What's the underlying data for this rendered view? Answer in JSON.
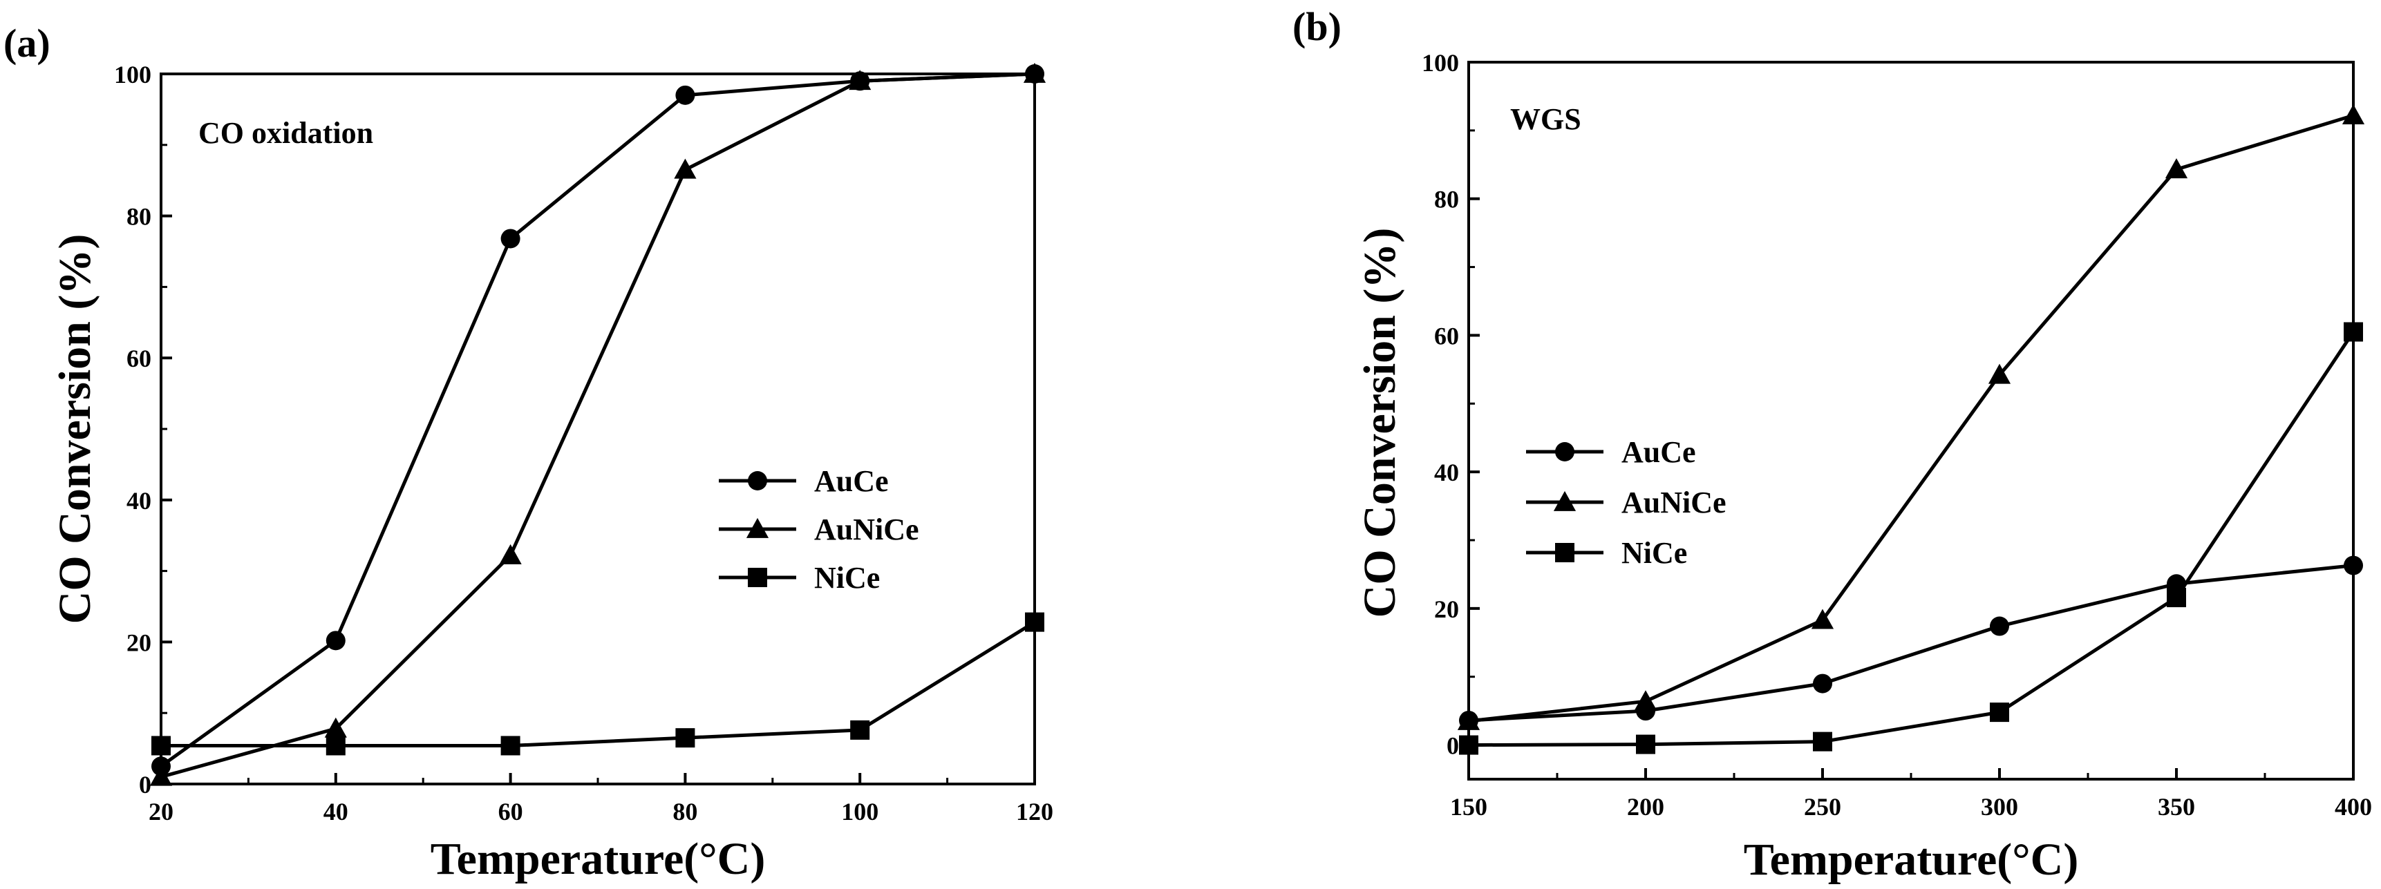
{
  "chart_data": [
    {
      "panel_label": "(a)",
      "type": "line",
      "title": "",
      "annotation": "CO oxidation",
      "xlabel": "Temperature(°C)",
      "ylabel": "CO Conversion (%)",
      "xlim": [
        20,
        120
      ],
      "ylim": [
        0,
        100
      ],
      "xticks": [
        20,
        40,
        60,
        80,
        100,
        120
      ],
      "yticks": [
        0,
        20,
        40,
        60,
        80,
        100
      ],
      "legend_position": "center-right",
      "series": [
        {
          "name": "AuCe",
          "marker": "circle",
          "x": [
            20,
            40,
            60,
            80,
            100,
            120
          ],
          "values": [
            2.5,
            20.2,
            76.8,
            97,
            99,
            100
          ]
        },
        {
          "name": "AuNiCe",
          "marker": "triangle",
          "x": [
            20,
            40,
            60,
            80,
            100,
            120
          ],
          "values": [
            1,
            7.8,
            32.2,
            86.5,
            99,
            100
          ]
        },
        {
          "name": "NiCe",
          "marker": "square",
          "x": [
            20,
            40,
            60,
            80,
            100,
            120
          ],
          "values": [
            5.4,
            5.4,
            5.4,
            6.5,
            7.6,
            22.8
          ]
        }
      ]
    },
    {
      "panel_label": "(b)",
      "type": "line",
      "title": "",
      "annotation": "WGS",
      "xlabel": "Temperature(°C)",
      "ylabel": "CO Conversion (%)",
      "xlim": [
        150,
        400
      ],
      "ylim": [
        -5,
        100
      ],
      "xticks": [
        150,
        200,
        250,
        300,
        350,
        400
      ],
      "yticks": [
        0,
        20,
        40,
        60,
        80,
        100
      ],
      "legend_position": "center-left",
      "series": [
        {
          "name": "AuCe",
          "marker": "circle",
          "x": [
            150,
            200,
            250,
            300,
            350,
            400
          ],
          "values": [
            3.6,
            5,
            9,
            17.4,
            23.6,
            26.3
          ]
        },
        {
          "name": "AuNiCe",
          "marker": "triangle",
          "x": [
            150,
            200,
            250,
            300,
            350,
            400
          ],
          "values": [
            3.5,
            6.4,
            18.3,
            54.2,
            84.3,
            92.2
          ]
        },
        {
          "name": "NiCe",
          "marker": "square",
          "x": [
            150,
            200,
            250,
            300,
            350,
            400
          ],
          "values": [
            0,
            0.1,
            0.5,
            4.8,
            21.6,
            60.5
          ]
        }
      ]
    }
  ]
}
